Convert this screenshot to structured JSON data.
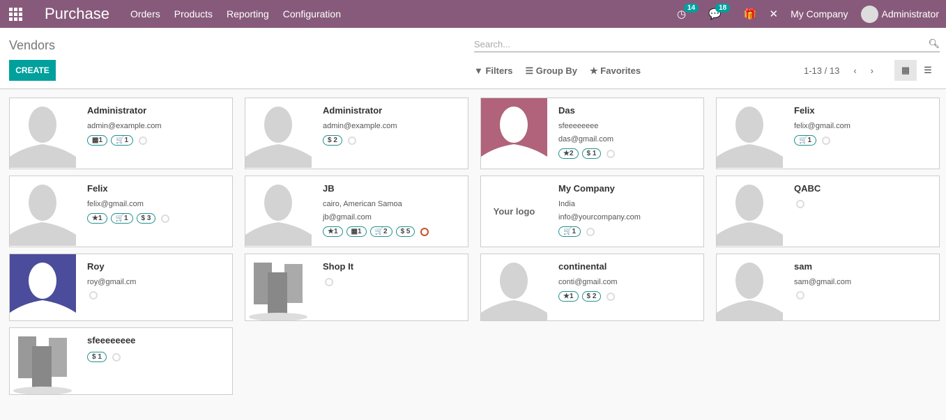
{
  "nav": {
    "app": "Purchase",
    "menu": [
      "Orders",
      "Products",
      "Reporting",
      "Configuration"
    ],
    "activity_count": "14",
    "message_count": "18",
    "company": "My Company",
    "user": "Administrator"
  },
  "control": {
    "title": "Vendors",
    "create": "CREATE",
    "search_placeholder": "Search...",
    "filters": "Filters",
    "group_by": "Group By",
    "favorites": "Favorites",
    "pager": "1-13 / 13"
  },
  "colors": {
    "navbar": "#875a7b",
    "accent": "#00a09d"
  },
  "cards": [
    {
      "name": "Administrator",
      "lines": [
        "admin@example.com"
      ],
      "avatar": "placeholder",
      "badges": [
        "▦1",
        "🛒1"
      ],
      "clock": "grey"
    },
    {
      "name": "Administrator",
      "lines": [
        "admin@example.com"
      ],
      "avatar": "placeholder",
      "badges": [
        "$ 2"
      ],
      "clock": "grey"
    },
    {
      "name": "Das",
      "lines": [
        "sfeeeeeeee",
        "das@gmail.com"
      ],
      "avatar": "placeholder-maroon",
      "badges": [
        "★2",
        "$ 1"
      ],
      "clock": "grey"
    },
    {
      "name": "Felix",
      "lines": [
        "felix@gmail.com"
      ],
      "avatar": "placeholder",
      "badges": [
        "🛒1"
      ],
      "clock": "grey"
    },
    {
      "name": "Felix",
      "lines": [
        "felix@gmail.com"
      ],
      "avatar": "placeholder",
      "badges": [
        "★1",
        "🛒1",
        "$ 3"
      ],
      "clock": "grey"
    },
    {
      "name": "JB",
      "lines": [
        "cairo, American Samoa",
        "jb@gmail.com"
      ],
      "avatar": "placeholder",
      "badges": [
        "★1",
        "▦1",
        "🛒2",
        "$ 5"
      ],
      "clock": "red"
    },
    {
      "name": "My Company",
      "lines": [
        "India",
        "info@yourcompany.com"
      ],
      "avatar": "logo",
      "logo_text": "Your logo",
      "badges": [
        "🛒1"
      ],
      "clock": "grey"
    },
    {
      "name": "QABC",
      "lines": [],
      "avatar": "placeholder",
      "badges": [],
      "clock": "grey"
    },
    {
      "name": "Roy",
      "lines": [
        "roy@gmail.cm"
      ],
      "avatar": "placeholder-blue",
      "badges": [],
      "clock": "grey"
    },
    {
      "name": "Shop It",
      "lines": [],
      "avatar": "buildings",
      "badges": [],
      "clock": "grey"
    },
    {
      "name": "continental",
      "lines": [
        "conti@gmail.com"
      ],
      "avatar": "placeholder",
      "badges": [
        "★1",
        "$ 2"
      ],
      "clock": "grey"
    },
    {
      "name": "sam",
      "lines": [
        "sam@gmail.com"
      ],
      "avatar": "placeholder",
      "badges": [],
      "clock": "grey"
    },
    {
      "name": "sfeeeeeeee",
      "lines": [],
      "avatar": "buildings",
      "badges": [
        "$ 1"
      ],
      "clock": "grey"
    }
  ]
}
